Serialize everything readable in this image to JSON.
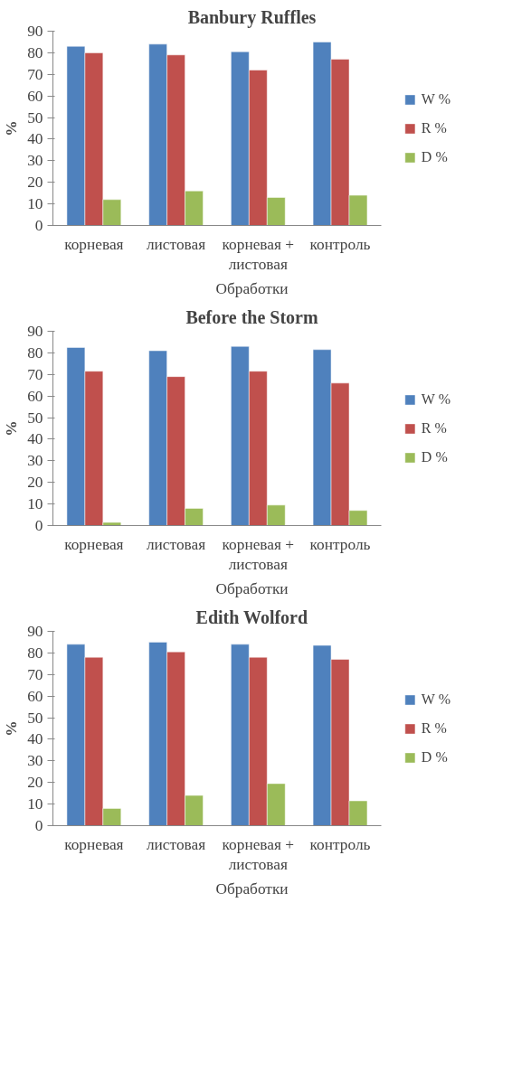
{
  "chart_data": [
    {
      "type": "bar",
      "title": "Banbury Ruffles",
      "xlabel": "Обработки",
      "ylabel": "%",
      "categories": [
        "корневая",
        "листовая",
        "корневая + листовая",
        "контроль"
      ],
      "ylim": [
        0,
        90
      ],
      "yticks": [
        0,
        10,
        20,
        30,
        40,
        50,
        60,
        70,
        80,
        90
      ],
      "grid": false,
      "legend": "right",
      "series": [
        {
          "name": "W %",
          "color": "#4f81bd",
          "values": [
            83,
            84,
            80.5,
            85
          ]
        },
        {
          "name": "R %",
          "color": "#c0504d",
          "values": [
            80,
            79,
            72,
            77
          ]
        },
        {
          "name": "D %",
          "color": "#9bbb59",
          "values": [
            12,
            16,
            13,
            14
          ]
        }
      ]
    },
    {
      "type": "bar",
      "title": "Before the Storm",
      "xlabel": "Обработки",
      "ylabel": "%",
      "categories": [
        "корневая",
        "листовая",
        "корневая + листовая",
        "контроль"
      ],
      "ylim": [
        0,
        90
      ],
      "yticks": [
        0,
        10,
        20,
        30,
        40,
        50,
        60,
        70,
        80,
        90
      ],
      "grid": false,
      "legend": "right",
      "series": [
        {
          "name": "W %",
          "color": "#4f81bd",
          "values": [
            82.5,
            81,
            83,
            81.5
          ]
        },
        {
          "name": "R %",
          "color": "#c0504d",
          "values": [
            71.5,
            69,
            71.5,
            66
          ]
        },
        {
          "name": "D %",
          "color": "#9bbb59",
          "values": [
            1.5,
            8,
            9.5,
            7
          ]
        }
      ]
    },
    {
      "type": "bar",
      "title": "Edith Wolford",
      "xlabel": "Обработки",
      "ylabel": "%",
      "categories": [
        "корневая",
        "листовая",
        "корневая + листовая",
        "контроль"
      ],
      "ylim": [
        0,
        90
      ],
      "yticks": [
        0,
        10,
        20,
        30,
        40,
        50,
        60,
        70,
        80,
        90
      ],
      "grid": false,
      "legend": "right",
      "series": [
        {
          "name": "W %",
          "color": "#4f81bd",
          "values": [
            84,
            85,
            84,
            83.5
          ]
        },
        {
          "name": "R %",
          "color": "#c0504d",
          "values": [
            78,
            80.5,
            78,
            77
          ]
        },
        {
          "name": "D %",
          "color": "#9bbb59",
          "values": [
            8,
            14,
            19.5,
            11.5
          ]
        }
      ]
    }
  ]
}
